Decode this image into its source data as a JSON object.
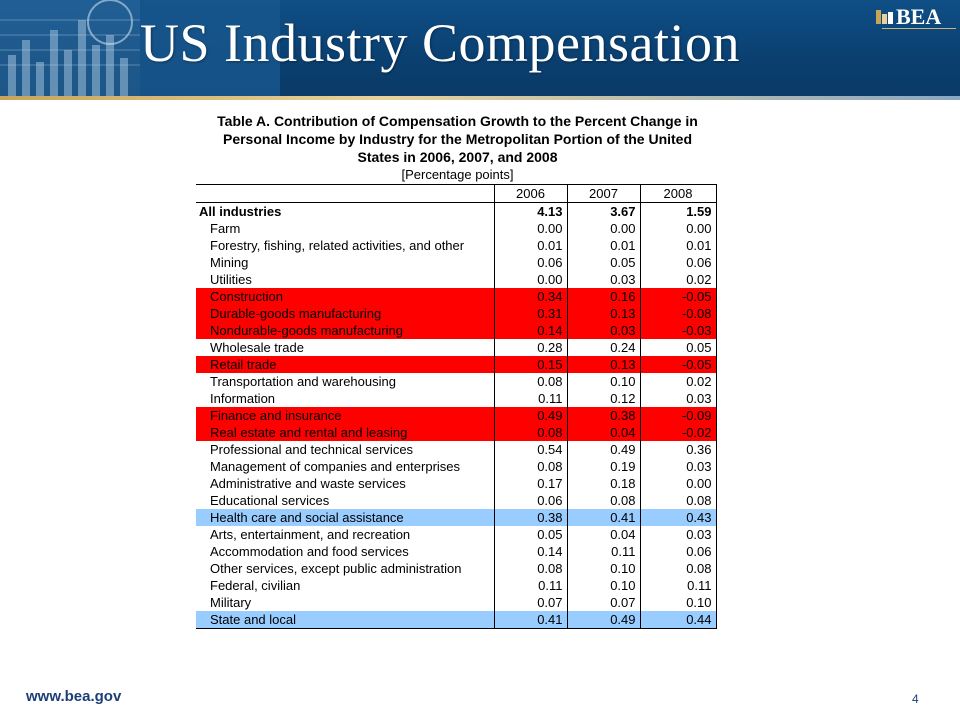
{
  "slide": {
    "title": "US Industry Compensation",
    "logo_text": "BEA",
    "footer_url": "www.bea.gov",
    "page_number": "4"
  },
  "table": {
    "title_lines": [
      "Table A. Contribution of Compensation Growth to the Percent Change in",
      "Personal Income by Industry for the Metropolitan Portion of the United",
      "States in 2006, 2007, and 2008"
    ],
    "subtitle": "[Percentage points]",
    "columns": [
      "",
      "2006",
      "2007",
      "2008"
    ],
    "rows": [
      {
        "label": "All industries",
        "values": [
          "4.13",
          "3.67",
          "1.59"
        ],
        "style": "bold"
      },
      {
        "label": "Farm",
        "values": [
          "0.00",
          "0.00",
          "0.00"
        ],
        "style": ""
      },
      {
        "label": "Forestry, fishing, related activities, and other",
        "values": [
          "0.01",
          "0.01",
          "0.01"
        ],
        "style": ""
      },
      {
        "label": "Mining",
        "values": [
          "0.06",
          "0.05",
          "0.06"
        ],
        "style": ""
      },
      {
        "label": "Utilities",
        "values": [
          "0.00",
          "0.03",
          "0.02"
        ],
        "style": ""
      },
      {
        "label": "Construction",
        "values": [
          "0.34",
          "0.16",
          "-0.05"
        ],
        "style": "red"
      },
      {
        "label": "Durable-goods manufacturing",
        "values": [
          "0.31",
          "0.13",
          "-0.08"
        ],
        "style": "red"
      },
      {
        "label": "Nondurable-goods manufacturing",
        "values": [
          "0.14",
          "0.03",
          "-0.03"
        ],
        "style": "red"
      },
      {
        "label": "Wholesale trade",
        "values": [
          "0.28",
          "0.24",
          "0.05"
        ],
        "style": ""
      },
      {
        "label": "Retail trade",
        "values": [
          "0.15",
          "0.13",
          "-0.05"
        ],
        "style": "red"
      },
      {
        "label": "Transportation and warehousing",
        "values": [
          "0.08",
          "0.10",
          "0.02"
        ],
        "style": ""
      },
      {
        "label": "Information",
        "values": [
          "0.11",
          "0.12",
          "0.03"
        ],
        "style": ""
      },
      {
        "label": "Finance and insurance",
        "values": [
          "0.49",
          "0.38",
          "-0.09"
        ],
        "style": "red"
      },
      {
        "label": "Real estate and rental and leasing",
        "values": [
          "0.08",
          "0.04",
          "-0.02"
        ],
        "style": "red"
      },
      {
        "label": "Professional and technical services",
        "values": [
          "0.54",
          "0.49",
          "0.36"
        ],
        "style": ""
      },
      {
        "label": "Management of companies and enterprises",
        "values": [
          "0.08",
          "0.19",
          "0.03"
        ],
        "style": ""
      },
      {
        "label": "Administrative and waste services",
        "values": [
          "0.17",
          "0.18",
          "0.00"
        ],
        "style": ""
      },
      {
        "label": "Educational services",
        "values": [
          "0.06",
          "0.08",
          "0.08"
        ],
        "style": ""
      },
      {
        "label": "Health care and social assistance",
        "values": [
          "0.38",
          "0.41",
          "0.43"
        ],
        "style": "blue"
      },
      {
        "label": "Arts, entertainment, and recreation",
        "values": [
          "0.05",
          "0.04",
          "0.03"
        ],
        "style": ""
      },
      {
        "label": "Accommodation and food services",
        "values": [
          "0.14",
          "0.11",
          "0.06"
        ],
        "style": ""
      },
      {
        "label": "Other services, except public administration",
        "values": [
          "0.08",
          "0.10",
          "0.08"
        ],
        "style": ""
      },
      {
        "label": "Federal, civilian",
        "values": [
          "0.11",
          "0.10",
          "0.11"
        ],
        "style": ""
      },
      {
        "label": "Military",
        "values": [
          "0.07",
          "0.07",
          "0.10"
        ],
        "style": ""
      },
      {
        "label": "State and local",
        "values": [
          "0.41",
          "0.49",
          "0.44"
        ],
        "style": "blue"
      }
    ]
  },
  "colors": {
    "banner": "#0a3f70",
    "highlight_red": "#ff0000",
    "highlight_blue": "#99ccff",
    "footer_text": "#1c3f78"
  }
}
